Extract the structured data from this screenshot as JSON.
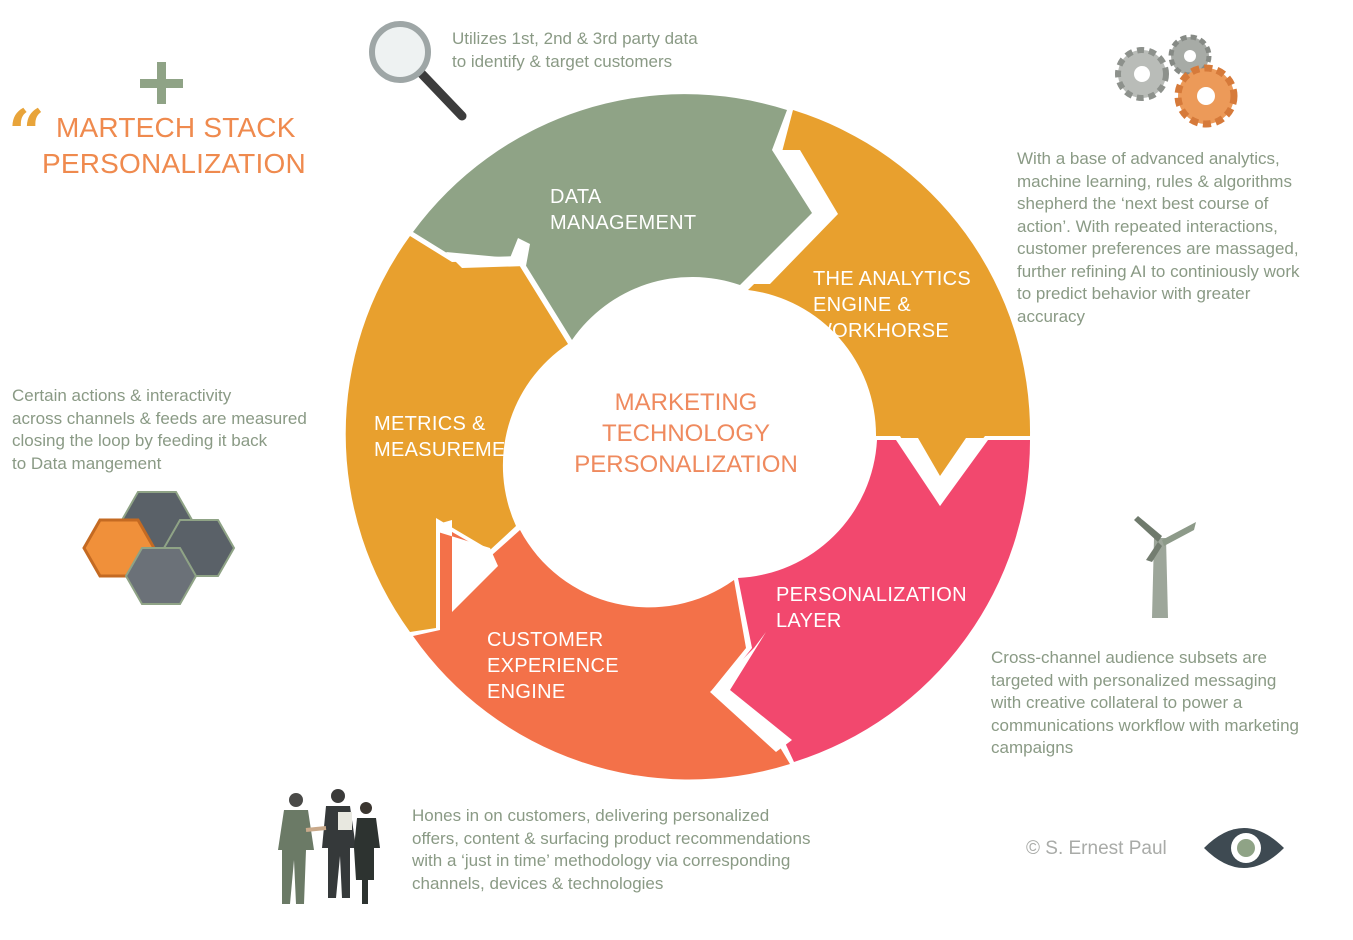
{
  "title": {
    "line1": "MARTECH STACK",
    "line2": "PERSONALIZATION"
  },
  "center": {
    "lines": [
      "MARKETING",
      "TECHNOLOGY",
      "PERSONALIZATION"
    ]
  },
  "segments": {
    "data_management": [
      "DATA",
      "MANAGEMENT"
    ],
    "analytics_engine": [
      "THE ANALYTICS",
      "ENGINE &",
      "WORKHORSE"
    ],
    "personalization_layer": [
      "PERSONALIZATION",
      "LAYER"
    ],
    "customer_experience": [
      "CUSTOMER",
      "EXPERIENCE",
      "ENGINE"
    ],
    "metrics": [
      "METRICS &",
      "MEASUREMENT"
    ]
  },
  "notes": {
    "data": [
      "Utilizes 1st, 2nd & 3rd party data",
      "to identify & target customers"
    ],
    "analytics": [
      "With a base of advanced analytics,",
      "machine learning, rules & algorithms",
      "shepherd the ‘next best course of",
      "action’. With repeated interactions,",
      "customer preferences are massaged,",
      "further refining AI to continiously work",
      "to predict behavior with greater",
      "accuracy"
    ],
    "personalization": [
      "Cross-channel audience subsets are",
      "targeted with personalized messaging",
      "with creative collateral to power a",
      "communications workflow with marketing",
      "campaigns"
    ],
    "customer": [
      "Hones in on customers, delivering personalized",
      "offers, content & surfacing product recommendations",
      "with a ‘just in time’ methodology via corresponding",
      "channels, devices & technologies"
    ],
    "metrics": [
      "Certain actions & interactivity",
      "across channels & feeds are measured",
      "closing the loop by feeding it back",
      "to Data mangement"
    ]
  },
  "copyright": "© S. Ernest Paul",
  "colors": {
    "data_management": "#8fa386",
    "analytics_engine": "#e8a02e",
    "personalization_layer": "#f2486e",
    "customer_experience": "#f37149",
    "metrics": "#e8a02e",
    "notes_text": "#8a9a85",
    "title": "#ef8a4e",
    "center_text": "#ef8a5e"
  },
  "icons": [
    "plus-icon",
    "quote-mark-icon",
    "magnifier-icon",
    "gears-icon",
    "wind-turbine-icon",
    "hexagons-icon",
    "business-people-icon",
    "eye-logo-icon"
  ]
}
